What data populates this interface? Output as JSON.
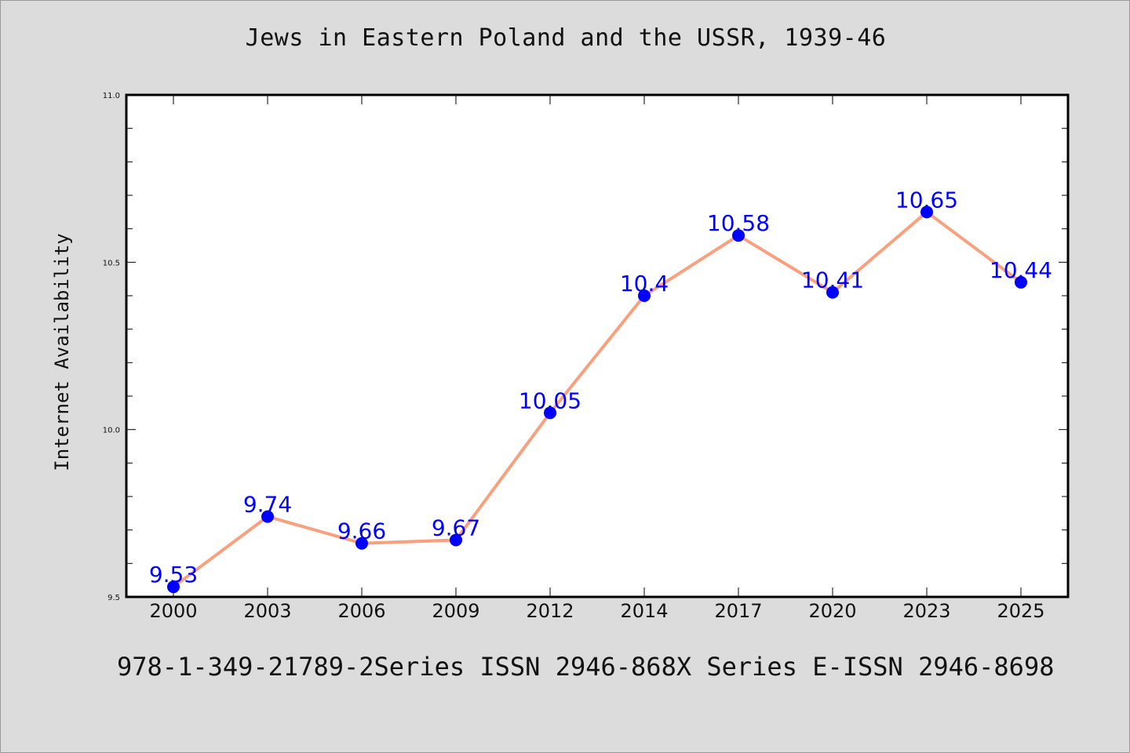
{
  "chart_data": {
    "type": "line",
    "title": "Jews in Eastern Poland and the USSR, 1939-46",
    "xlabel": "",
    "ylabel": "Internet Availability",
    "categories": [
      "2000",
      "2003",
      "2006",
      "2009",
      "2012",
      "2014",
      "2017",
      "2020",
      "2023",
      "2025"
    ],
    "series": [
      {
        "values": [
          9.53,
          9.74,
          9.66,
          9.67,
          10.05,
          10.4,
          10.58,
          10.41,
          10.65,
          10.44
        ]
      }
    ],
    "data_labels": [
      "9.53",
      "9.74",
      "9.66",
      "9.67",
      "10.05",
      "10.4",
      "10.58",
      "10.41",
      "10.65",
      "10.44"
    ],
    "ylim": [
      9.5,
      11.0
    ],
    "y_ticks": [
      9.5,
      10.0,
      10.5,
      11.0
    ],
    "y_tick_labels": [
      "9.5",
      "10.0",
      "10.5",
      "11.0"
    ],
    "y_minor_step": 0.1,
    "grid": false,
    "legend": "none",
    "line_color": "#f9a07e",
    "marker_color": "#0000ff",
    "label_color": "#0000ff"
  },
  "footer": "978-1-349-21789-2Series ISSN 2946-868X Series E-ISSN 2946-8698"
}
